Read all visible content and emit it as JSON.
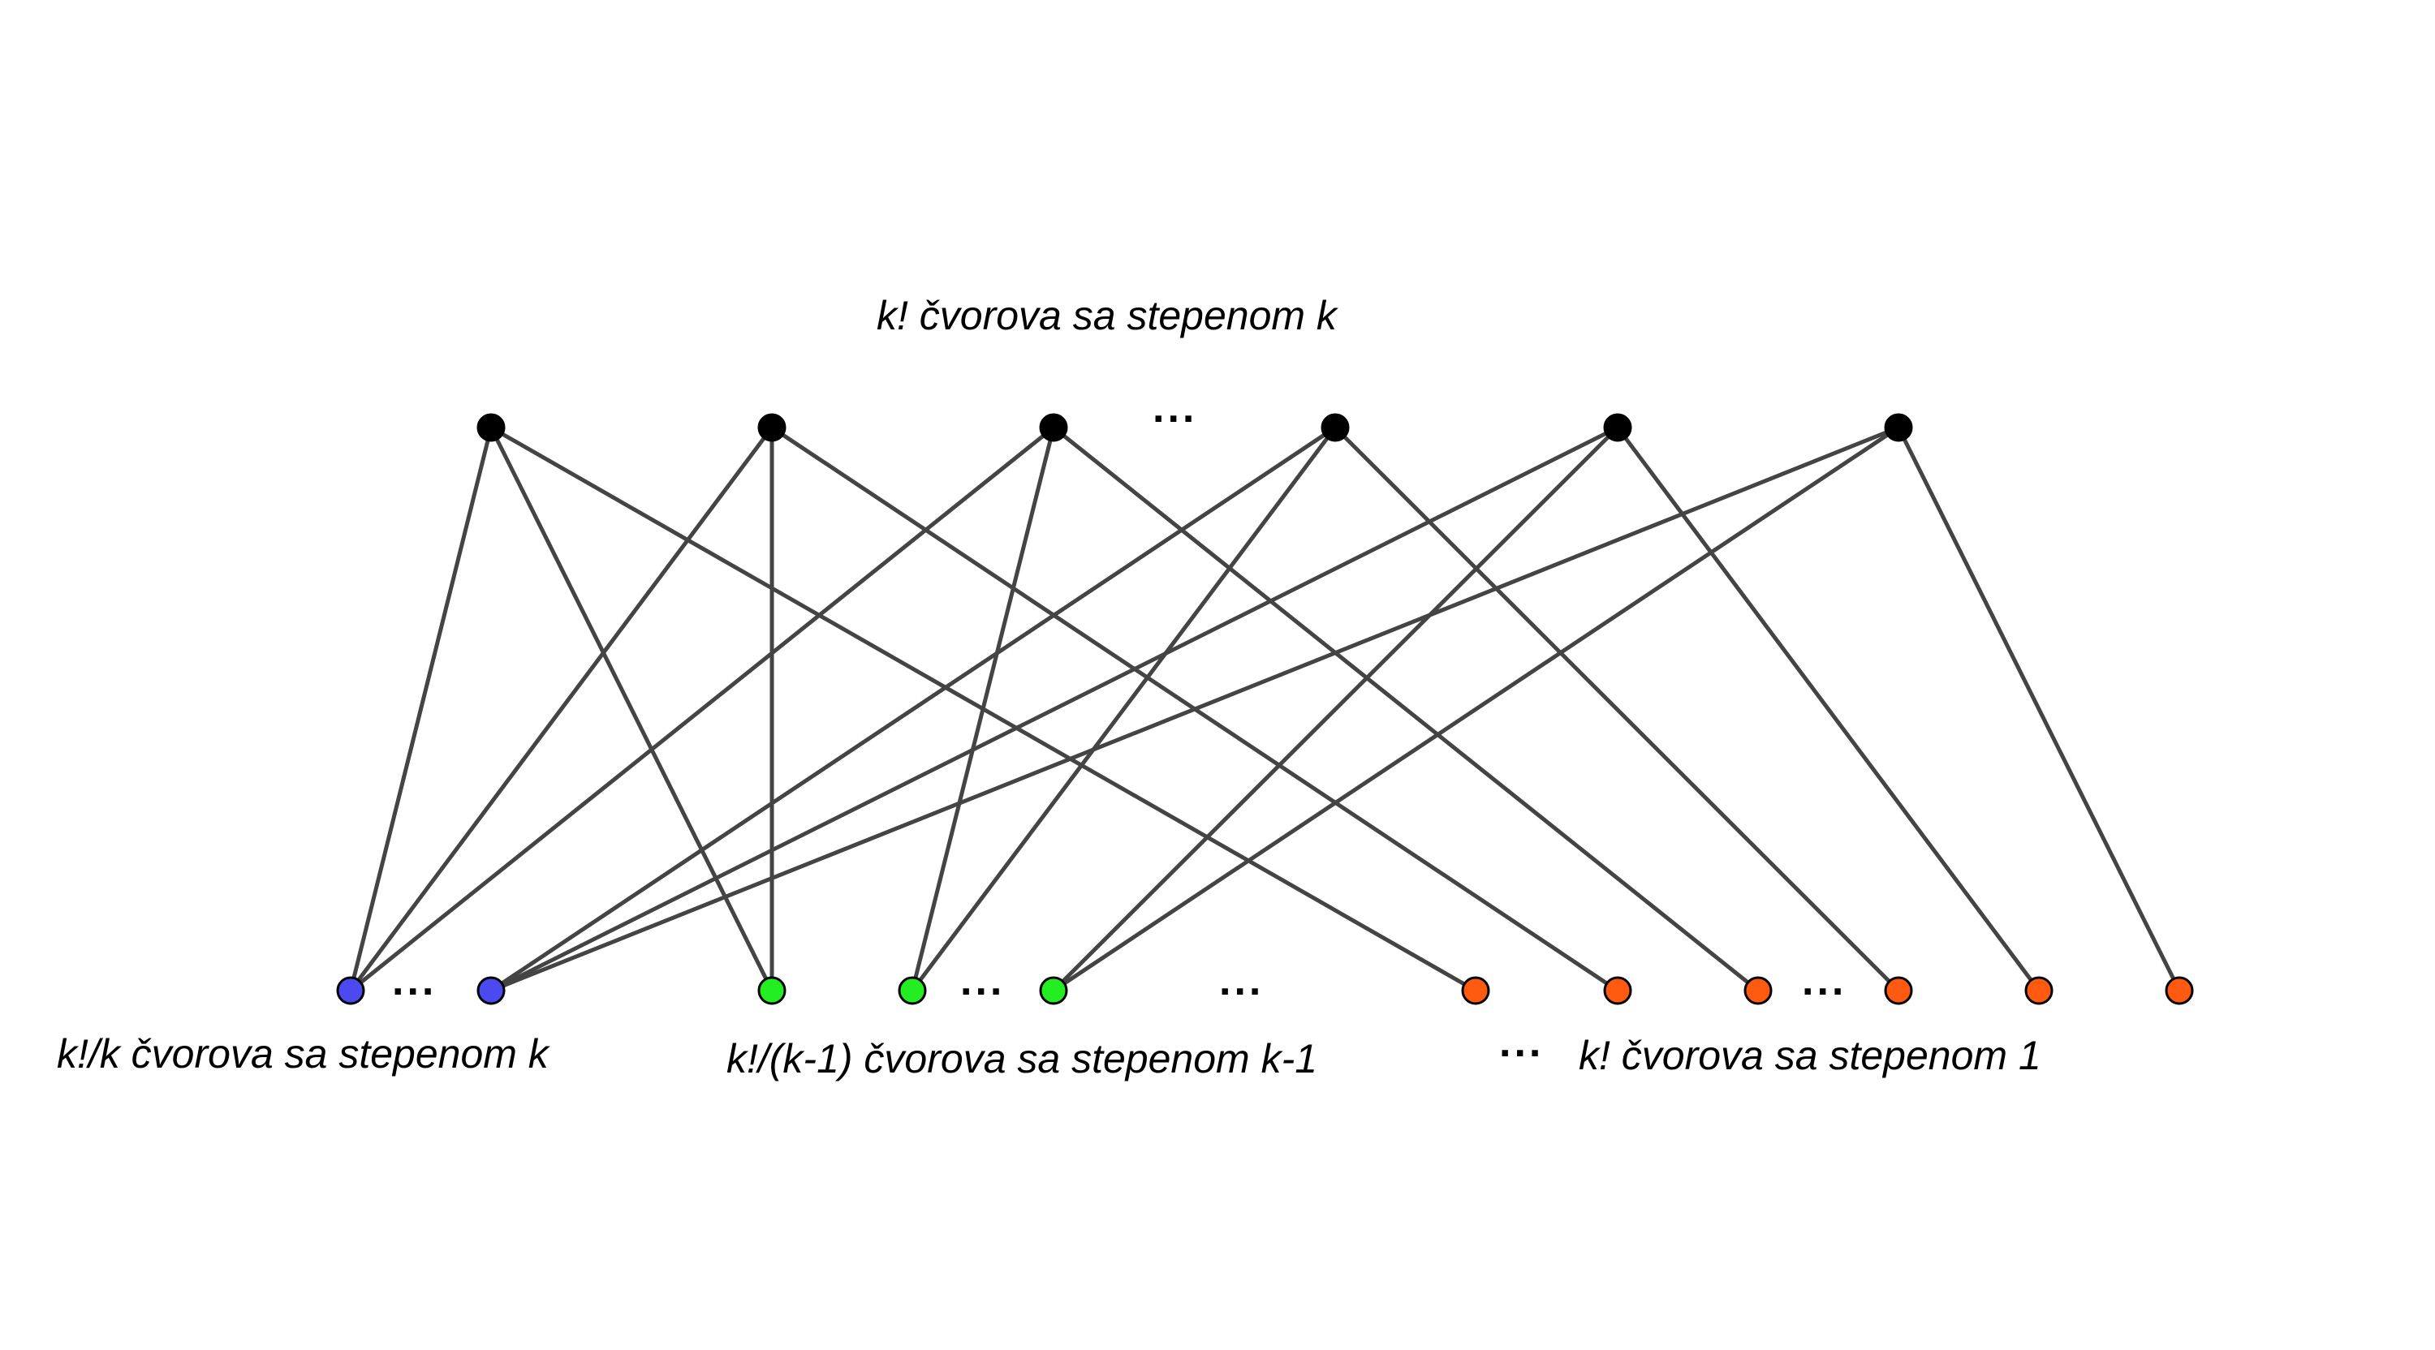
{
  "labels": {
    "top": "k! čvorova sa stepenom k",
    "bottom_left": "k!/k čvorova sa stepenom k",
    "bottom_middle": "k!/(k-1) čvorova sa stepenom k-1",
    "bottom_right": "k! čvorova sa stepenom 1"
  },
  "ellipsis": "...",
  "colors": {
    "top_nodes": "#000000",
    "degree_k_nodes": "#4a4af0",
    "degree_k_minus_1_nodes": "#22ee22",
    "degree_1_nodes": "#ff5a10",
    "edges": "#444444"
  },
  "graph": {
    "top_nodes": [
      "t1",
      "t2",
      "t3",
      "t4",
      "t5",
      "t6"
    ],
    "bottom_nodes": [
      {
        "id": "b1",
        "group": "degree_k_nodes"
      },
      {
        "id": "b2",
        "group": "degree_k_nodes"
      },
      {
        "id": "g1",
        "group": "degree_k_minus_1_nodes"
      },
      {
        "id": "g2",
        "group": "degree_k_minus_1_nodes"
      },
      {
        "id": "g3",
        "group": "degree_k_minus_1_nodes"
      },
      {
        "id": "o1",
        "group": "degree_1_nodes"
      },
      {
        "id": "o2",
        "group": "degree_1_nodes"
      },
      {
        "id": "o3",
        "group": "degree_1_nodes"
      },
      {
        "id": "o4",
        "group": "degree_1_nodes"
      },
      {
        "id": "o5",
        "group": "degree_1_nodes"
      },
      {
        "id": "o6",
        "group": "degree_1_nodes"
      }
    ],
    "edges": [
      [
        "t1",
        "b1"
      ],
      [
        "t1",
        "g1"
      ],
      [
        "t1",
        "o1"
      ],
      [
        "t2",
        "b1"
      ],
      [
        "t2",
        "g1"
      ],
      [
        "t2",
        "o2"
      ],
      [
        "t3",
        "b1"
      ],
      [
        "t3",
        "g2"
      ],
      [
        "t3",
        "o3"
      ],
      [
        "t4",
        "b2"
      ],
      [
        "t4",
        "g2"
      ],
      [
        "t4",
        "o4"
      ],
      [
        "t5",
        "b2"
      ],
      [
        "t5",
        "g3"
      ],
      [
        "t5",
        "o5"
      ],
      [
        "t6",
        "b2"
      ],
      [
        "t6",
        "g3"
      ],
      [
        "t6",
        "o6"
      ]
    ]
  }
}
